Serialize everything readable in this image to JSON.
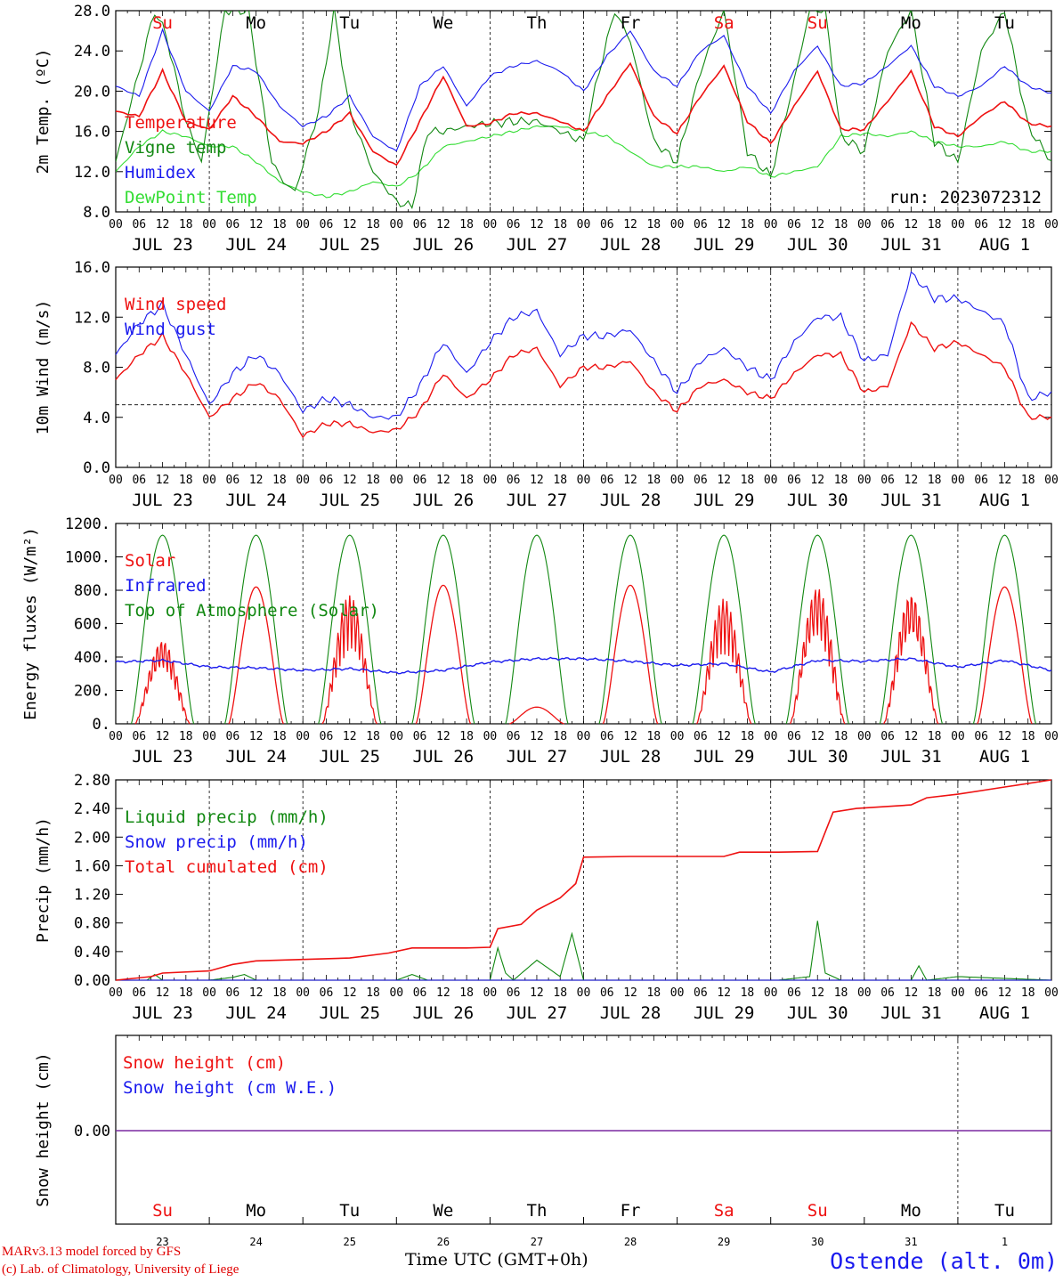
{
  "days": [
    {
      "name": "Su",
      "date": "JUL 23",
      "num": "23",
      "weekend": true
    },
    {
      "name": "Mo",
      "date": "JUL 24",
      "num": "24",
      "weekend": false
    },
    {
      "name": "Tu",
      "date": "JUL 25",
      "num": "25",
      "weekend": false
    },
    {
      "name": "We",
      "date": "JUL 26",
      "num": "26",
      "weekend": false
    },
    {
      "name": "Th",
      "date": "JUL 27",
      "num": "27",
      "weekend": false
    },
    {
      "name": "Fr",
      "date": "JUL 28",
      "num": "28",
      "weekend": false
    },
    {
      "name": "Sa",
      "date": "JUL 29",
      "num": "29",
      "weekend": true
    },
    {
      "name": "Su",
      "date": "JUL 30",
      "num": "30",
      "weekend": true
    },
    {
      "name": "Mo",
      "date": "JUL 31",
      "num": "31",
      "weekend": false
    },
    {
      "name": "Tu",
      "date": "AUG  1",
      "num": "1",
      "weekend": false
    }
  ],
  "hour_ticks": [
    "00",
    "06",
    "12",
    "18"
  ],
  "run_label": "run: 2023072312",
  "colors": {
    "red": "#ee1111",
    "blue": "#1a1aee",
    "green": "#118811",
    "lightgreen": "#33dd33",
    "purple": "#7a2aa0"
  },
  "chart_data": [
    {
      "type": "line",
      "ylabel": "2m Temp. (ºC)",
      "ylim": [
        8,
        28
      ],
      "yticks": [
        "8.0",
        "12.0",
        "16.0",
        "20.0",
        "24.0",
        "28.0"
      ],
      "x_unit": "hours since JUL 23 00 UTC",
      "series": [
        {
          "name": "Temperature",
          "color": "#ee1111",
          "x": [
            0,
            6,
            12,
            18,
            24,
            30,
            36,
            42,
            48,
            54,
            60,
            66,
            72,
            78,
            84,
            90,
            96,
            102,
            108,
            114,
            120,
            126,
            132,
            138,
            144,
            150,
            156,
            162,
            168,
            174,
            180,
            186,
            192,
            198,
            204,
            210,
            216,
            222,
            228,
            234,
            240
          ],
          "y": [
            18.0,
            17.5,
            22.0,
            17.0,
            16.2,
            19.5,
            17.5,
            15.0,
            14.8,
            16.0,
            17.8,
            14.0,
            12.6,
            17.0,
            21.5,
            16.5,
            16.8,
            17.8,
            17.8,
            17.0,
            16.0,
            19.5,
            22.8,
            17.5,
            15.8,
            19.5,
            22.5,
            17.0,
            14.8,
            18.5,
            22.0,
            16.2,
            16.2,
            19.0,
            22.0,
            16.5,
            15.5,
            17.5,
            19.0,
            16.8,
            16.5
          ]
        },
        {
          "name": "Vigne temp",
          "color": "#118811",
          "x": [
            0,
            6,
            10,
            13,
            18,
            22,
            28,
            34,
            40,
            43,
            46,
            52,
            56,
            60,
            66,
            72,
            76,
            80,
            84,
            90,
            96,
            102,
            108,
            114,
            120,
            124,
            128,
            132,
            138,
            144,
            150,
            156,
            162,
            168,
            174,
            178,
            182,
            186,
            192,
            198,
            204,
            210,
            216,
            222,
            228,
            234,
            240
          ],
          "y": [
            13.0,
            22.0,
            28.0,
            25.5,
            17.0,
            13.0,
            28.0,
            28.0,
            13.0,
            11.0,
            10.0,
            18.0,
            28.0,
            18.0,
            12.0,
            9.0,
            8.5,
            16.0,
            16.0,
            16.5,
            16.8,
            17.0,
            17.0,
            16.0,
            15.0,
            22.0,
            28.0,
            25.0,
            15.0,
            13.0,
            22.0,
            28.0,
            14.0,
            11.5,
            21.0,
            28.0,
            28.0,
            15.5,
            14.0,
            24.0,
            28.0,
            15.0,
            13.0,
            24.0,
            28.0,
            16.5,
            13.0
          ]
        },
        {
          "name": "Humidex",
          "color": "#1a1aee",
          "x": [
            0,
            6,
            12,
            18,
            24,
            30,
            36,
            42,
            48,
            54,
            60,
            66,
            72,
            78,
            84,
            90,
            96,
            102,
            108,
            114,
            120,
            126,
            132,
            138,
            144,
            150,
            156,
            162,
            168,
            174,
            180,
            186,
            192,
            198,
            204,
            210,
            216,
            222,
            228,
            234,
            240
          ],
          "y": [
            20.5,
            19.5,
            26.0,
            20.0,
            18.0,
            22.5,
            22.0,
            18.5,
            16.5,
            17.5,
            19.5,
            15.5,
            14.0,
            20.5,
            22.5,
            18.5,
            21.5,
            22.5,
            23.0,
            22.0,
            20.0,
            23.5,
            26.0,
            22.0,
            20.5,
            24.0,
            25.5,
            20.5,
            17.8,
            22.0,
            24.5,
            20.5,
            20.8,
            22.5,
            24.5,
            20.5,
            19.5,
            20.5,
            22.5,
            20.5,
            19.8
          ]
        },
        {
          "name": "DewPoint Temp",
          "color": "#33dd33",
          "x": [
            0,
            6,
            12,
            18,
            24,
            30,
            36,
            42,
            48,
            54,
            60,
            66,
            72,
            78,
            84,
            90,
            96,
            102,
            108,
            114,
            120,
            126,
            132,
            138,
            144,
            150,
            156,
            162,
            168,
            174,
            180,
            186,
            192,
            198,
            204,
            210,
            216,
            222,
            228,
            234,
            240
          ],
          "y": [
            12.0,
            14.5,
            16.0,
            15.5,
            14.5,
            14.5,
            13.0,
            11.0,
            10.0,
            9.5,
            10.0,
            11.0,
            10.5,
            12.0,
            14.5,
            15.0,
            15.5,
            16.0,
            16.5,
            16.5,
            16.0,
            15.5,
            14.0,
            12.5,
            12.5,
            12.5,
            12.0,
            12.5,
            11.5,
            12.0,
            12.5,
            15.5,
            15.8,
            15.5,
            16.0,
            15.0,
            14.5,
            14.5,
            15.0,
            14.0,
            14.0
          ]
        }
      ]
    },
    {
      "type": "line",
      "ylabel": "10m Wind (m/s)",
      "ylim": [
        0,
        16
      ],
      "yticks": [
        "0.0",
        "4.0",
        "8.0",
        "12.0",
        "16.0"
      ],
      "reference_line": 5,
      "series": [
        {
          "name": "Wind speed",
          "color": "#ee1111",
          "x": [
            0,
            6,
            12,
            18,
            24,
            30,
            36,
            42,
            48,
            54,
            60,
            66,
            72,
            78,
            84,
            90,
            96,
            102,
            108,
            114,
            120,
            126,
            132,
            138,
            144,
            150,
            156,
            162,
            168,
            174,
            180,
            186,
            192,
            198,
            204,
            210,
            216,
            222,
            228,
            234,
            240
          ],
          "y": [
            7.0,
            9.0,
            10.5,
            7.5,
            4.0,
            5.5,
            6.8,
            5.5,
            2.5,
            3.5,
            3.5,
            2.8,
            3.0,
            4.5,
            7.5,
            5.5,
            7.0,
            9.0,
            9.5,
            6.5,
            8.0,
            8.0,
            8.5,
            6.0,
            4.5,
            6.5,
            7.0,
            6.0,
            5.5,
            7.5,
            9.0,
            9.0,
            6.0,
            6.5,
            11.5,
            9.5,
            10.0,
            9.0,
            8.0,
            4.0,
            4.0
          ]
        },
        {
          "name": "Wind gust",
          "color": "#1a1aee",
          "x": [
            0,
            6,
            12,
            18,
            24,
            30,
            36,
            42,
            48,
            54,
            60,
            66,
            72,
            78,
            84,
            90,
            96,
            102,
            108,
            114,
            120,
            126,
            132,
            138,
            144,
            150,
            156,
            162,
            168,
            174,
            180,
            186,
            192,
            198,
            204,
            210,
            216,
            222,
            228,
            234,
            240
          ],
          "y": [
            9.0,
            11.5,
            13.0,
            9.0,
            5.0,
            7.5,
            9.0,
            7.5,
            4.5,
            5.5,
            5.0,
            4.0,
            4.0,
            6.5,
            10.0,
            7.5,
            10.0,
            12.0,
            12.5,
            9.0,
            10.5,
            10.5,
            11.0,
            8.5,
            6.0,
            8.5,
            9.5,
            8.0,
            7.0,
            10.0,
            12.0,
            12.0,
            8.5,
            9.0,
            15.5,
            13.5,
            13.5,
            12.5,
            11.5,
            5.5,
            6.0
          ]
        }
      ]
    },
    {
      "type": "line",
      "ylabel": "Energy fluxes (W/m²)",
      "ylim": [
        0,
        1200
      ],
      "yticks": [
        "0.",
        "200.",
        "400.",
        "600.",
        "800.",
        "1000.",
        "1200."
      ],
      "series": [
        {
          "name": "Solar",
          "color": "#ee1111",
          "daily_peaks": [
            500,
            820,
            770,
            830,
            100,
            830,
            750,
            820,
            780,
            820
          ]
        },
        {
          "name": "Infrared",
          "color": "#1a1aee",
          "x": [
            0,
            12,
            24,
            36,
            48,
            60,
            72,
            84,
            96,
            108,
            120,
            132,
            144,
            156,
            168,
            180,
            192,
            204,
            216,
            228,
            240
          ],
          "y": [
            370,
            380,
            340,
            335,
            320,
            330,
            305,
            320,
            370,
            390,
            390,
            375,
            350,
            360,
            310,
            380,
            375,
            390,
            340,
            380,
            320
          ]
        },
        {
          "name": "Top of Atmosphere (Solar)",
          "color": "#118811",
          "daily_peak": 1130,
          "sunrise_h": 4,
          "sunset_h": 20
        }
      ]
    },
    {
      "type": "line",
      "ylabel": "Precip (mm/h)",
      "ylim": [
        0,
        2.8
      ],
      "yticks": [
        "0.00",
        "0.40",
        "0.80",
        "1.20",
        "1.60",
        "2.00",
        "2.40",
        "2.80"
      ],
      "series": [
        {
          "name": "Liquid precip (mm/h)",
          "color": "#118811",
          "x": [
            0,
            8,
            10,
            12,
            24,
            30,
            33,
            36,
            48,
            72,
            76,
            78,
            80,
            96,
            98,
            100,
            102,
            108,
            114,
            117,
            120,
            126,
            132,
            144,
            170,
            178,
            180,
            182,
            186,
            192,
            204,
            206,
            208,
            216,
            240
          ],
          "y": [
            0,
            0,
            0.08,
            0,
            0,
            0.04,
            0.08,
            0,
            0,
            0,
            0.08,
            0.04,
            0,
            0,
            0.45,
            0.1,
            0,
            0.28,
            0.05,
            0.65,
            0,
            0,
            0,
            0,
            0,
            0.05,
            0.83,
            0.1,
            0,
            0,
            0,
            0.2,
            0,
            0.05,
            0
          ]
        },
        {
          "name": "Snow precip (mm/h)",
          "color": "#1a1aee",
          "x": [
            0,
            240
          ],
          "y": [
            0,
            0
          ]
        },
        {
          "name": "Total cumulated (cm)",
          "color": "#ee1111",
          "x": [
            0,
            9,
            12,
            24,
            30,
            36,
            48,
            60,
            70,
            76,
            90,
            96,
            98,
            104,
            108,
            114,
            118,
            120,
            132,
            144,
            156,
            160,
            170,
            180,
            184,
            190,
            204,
            208,
            216,
            228,
            240
          ],
          "y": [
            0,
            0.05,
            0.1,
            0.13,
            0.22,
            0.27,
            0.29,
            0.31,
            0.38,
            0.45,
            0.45,
            0.46,
            0.72,
            0.78,
            0.98,
            1.15,
            1.35,
            1.72,
            1.73,
            1.73,
            1.73,
            1.79,
            1.79,
            1.8,
            2.35,
            2.4,
            2.45,
            2.55,
            2.6,
            2.7,
            2.8
          ]
        }
      ]
    },
    {
      "type": "line",
      "ylabel": "Snow height (cm)",
      "ytick": "0.00",
      "series": [
        {
          "name": "Snow height (cm)",
          "color": "#ee1111",
          "x": [
            0,
            240
          ],
          "y": [
            0,
            0
          ]
        },
        {
          "name": "Snow height (cm W.E.)",
          "color": "#1a1aee",
          "x": [
            0,
            240
          ],
          "y": [
            0,
            0
          ]
        }
      ]
    }
  ],
  "footer": {
    "credit_line1": "MARv3.13 model forced by GFS",
    "credit_line2": "(c) Lab. of Climatology, University of Liege",
    "time_label": "Time UTC (GMT+0h)",
    "station": "Ostende (alt. 0m)"
  }
}
